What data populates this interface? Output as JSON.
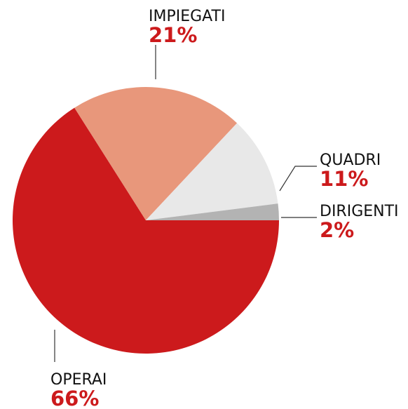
{
  "chart_data": {
    "type": "pie",
    "categories": [
      "OPERAI",
      "IMPIEGATI",
      "QUADRI",
      "DIRIGENTI"
    ],
    "values": [
      66,
      21,
      11,
      2
    ],
    "value_labels": [
      "66%",
      "21%",
      "11%",
      "2%"
    ],
    "colors": [
      "#cc1a1c",
      "#e8977b",
      "#e8e8e8",
      "#b3b3b3"
    ],
    "label_color": "#cc1a1c"
  }
}
